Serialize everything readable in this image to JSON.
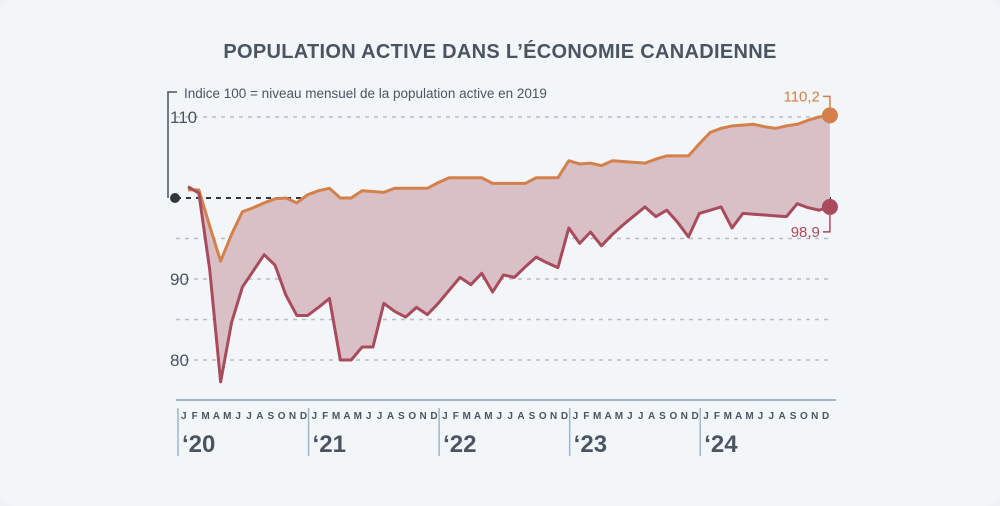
{
  "chart_data": {
    "type": "area",
    "title": "POPULATION ACTIVE DANS L’ÉCONOMIE CANADIENNE",
    "annotation": "Indice 100 = niveau mensuel de la population active en 2019",
    "ylim": [
      76,
      111
    ],
    "yticks": [
      110,
      90,
      80
    ],
    "gridlines": [
      110,
      95,
      90,
      85,
      80
    ],
    "baseline": 100,
    "grid": true,
    "month_labels": [
      "J",
      "F",
      "M",
      "A",
      "M",
      "J",
      "J",
      "A",
      "S",
      "O",
      "N",
      "D"
    ],
    "year_labels": [
      "‘20",
      "‘21",
      "‘22",
      "‘23",
      "‘24"
    ],
    "x_start": "2020-01",
    "x_end": "2024-12",
    "series": [
      {
        "color": "#d4804a",
        "end_label": "110,2",
        "values": [
          101,
          101,
          96.5,
          92.2,
          95.5,
          98.3,
          98.8,
          99.4,
          99.9,
          100,
          99.4,
          100.4,
          100.9,
          101.2,
          100,
          100,
          100.9,
          100.8,
          100.7,
          101.2,
          101.2,
          101.2,
          101.2,
          101.9,
          102.5,
          102.5,
          102.5,
          102.5,
          101.8,
          101.8,
          101.8,
          101.8,
          102.5,
          102.5,
          102.5,
          104.6,
          104.2,
          104.3,
          104,
          104.6,
          104.5,
          104.4,
          104.3,
          104.8,
          105.2,
          105.2,
          105.2,
          106.7,
          108.1,
          108.6,
          108.9,
          109,
          109.1,
          108.8,
          108.6,
          108.9,
          109.1,
          109.6,
          110,
          110.2
        ]
      },
      {
        "color": "#a84b5c",
        "end_label": "98,9",
        "values": [
          101.4,
          100.6,
          91.1,
          77.3,
          84.6,
          89,
          91,
          93,
          91.7,
          88,
          85.5,
          85.5,
          86.5,
          87.6,
          80,
          80,
          81.6,
          81.6,
          87,
          86,
          85.3,
          86.5,
          85.6,
          87,
          88.6,
          90.2,
          89.3,
          90.7,
          88.4,
          90.5,
          90.2,
          91.5,
          92.7,
          92,
          91.4,
          96.3,
          94.4,
          95.8,
          94.1,
          95.5,
          96.7,
          97.8,
          98.9,
          97.7,
          98.5,
          97,
          95.2,
          98.1,
          98.5,
          98.9,
          96.3,
          98.1,
          98,
          97.9,
          97.8,
          97.7,
          99.3,
          98.8,
          98.5,
          98.9
        ]
      }
    ],
    "fill_color": "#d9bfc6",
    "axis_color": "#9fb5cc"
  }
}
